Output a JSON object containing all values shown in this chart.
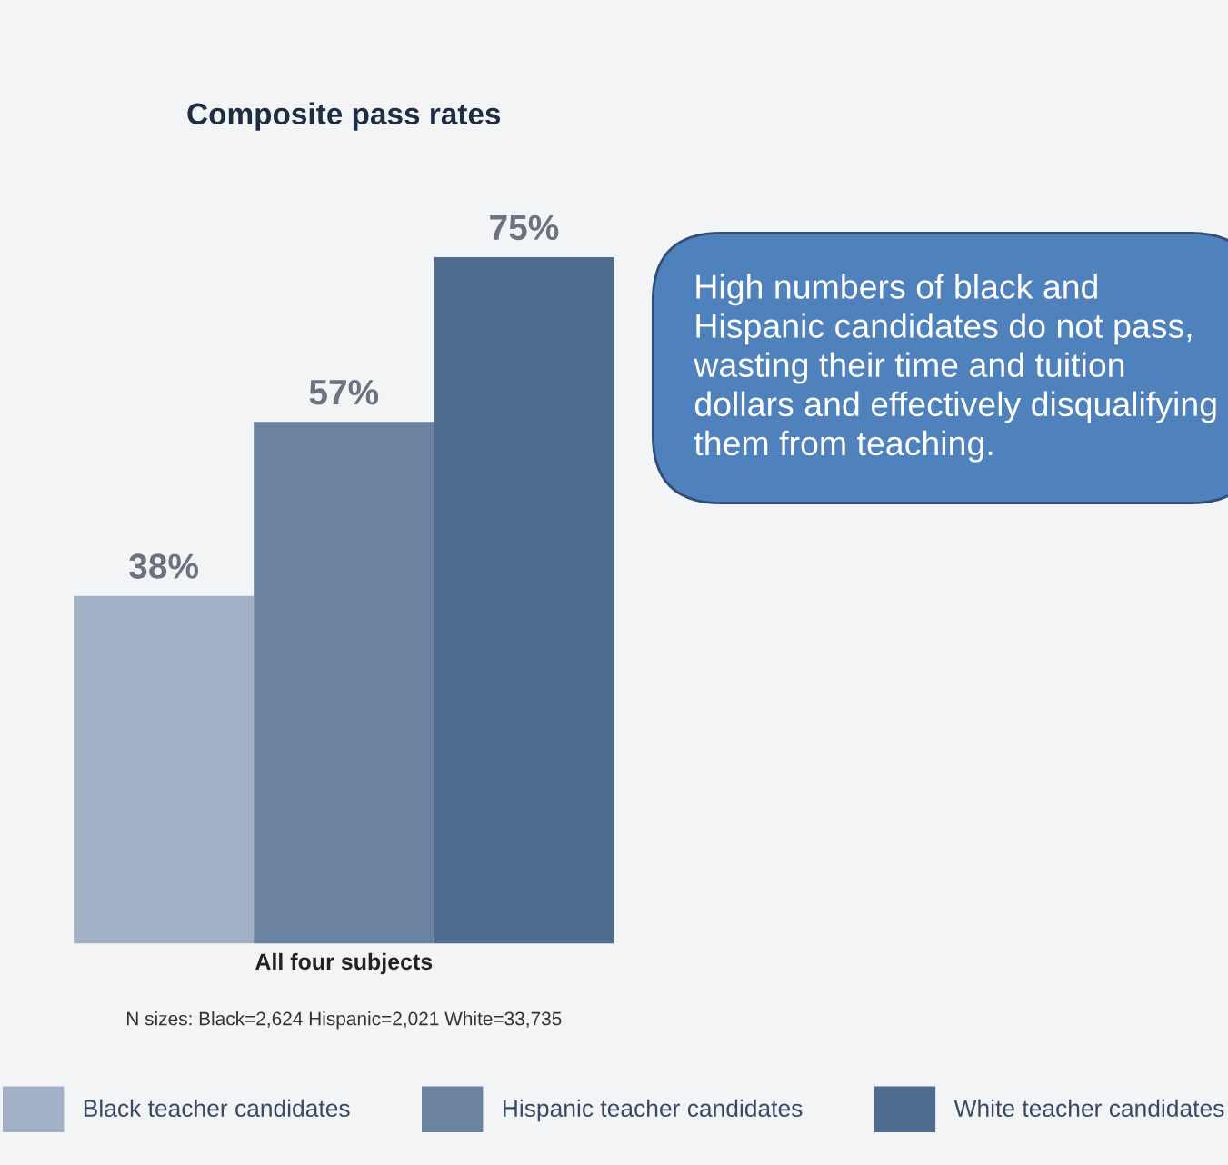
{
  "chart_data": {
    "type": "bar",
    "title": "Composite pass rates",
    "xlabel": "All four subjects",
    "categories": [
      null,
      null,
      null
    ],
    "stacked": true,
    "series": [
      {
        "name": "Black teacher candidates",
        "color": "#a2b1c6",
        "values": [
          38,
          null,
          null
        ],
        "value_labels": [
          "38%",
          null,
          null
        ]
      },
      {
        "name": "Hispanic teacher candidates",
        "color": "#6b82a0",
        "values": [
          null,
          57,
          null
        ],
        "value_labels": [
          null,
          "57%",
          null
        ]
      },
      {
        "name": "White teacher candidates",
        "color": "#4f6b90",
        "values": [
          null,
          null,
          75
        ],
        "value_labels": [
          null,
          null,
          "75%"
        ]
      }
    ],
    "annotations": [
      "N sizes: Black=2,624 Hispanic=2,021 White=33,735",
      "High numbers of black and Hispanic candidates do not pass, wasting their time and tuition dollars and effectively disqualifying them from teaching."
    ],
    "legend": "bottom",
    "grid": false,
    "tick_labels": "x"
  }
}
